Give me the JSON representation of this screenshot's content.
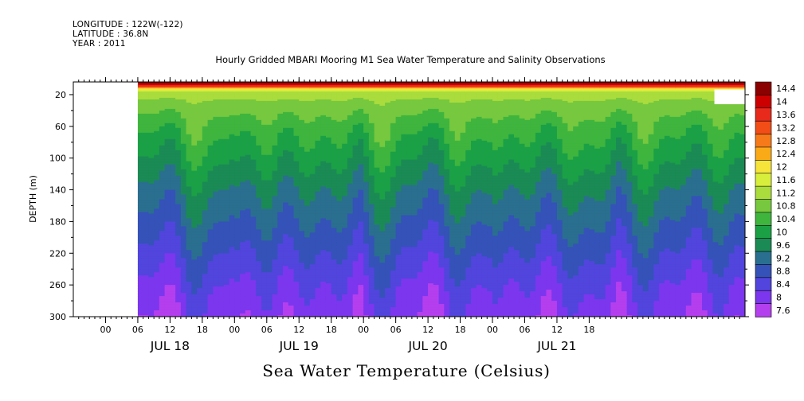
{
  "header": {
    "longitude": "LONGITUDE : 122W(-122)",
    "latitude": "LATITUDE : 36.8N",
    "year": "YEAR : 2011"
  },
  "chart_data": {
    "type": "heatmap",
    "title": "Hourly Gridded MBARI Mooring M1 Sea Water Temperature and Salinity Observations",
    "xlabel": "Sea Water Temperature (Celsius)",
    "ylabel": "DEPTH (m)",
    "x_unit": "hours since JUL 18 00",
    "xlim": [
      -6,
      119
    ],
    "data_start_hour": 6,
    "ylim": [
      300,
      4
    ],
    "y_ticks": [
      20,
      60,
      100,
      140,
      180,
      220,
      260,
      300
    ],
    "x_ticks": [
      "00",
      "06",
      "12",
      "18",
      "00",
      "06",
      "12",
      "18",
      "00",
      "06",
      "12",
      "18",
      "00",
      "06",
      "12",
      "18"
    ],
    "x_tick_hours": [
      0,
      6,
      12,
      18,
      24,
      30,
      36,
      42,
      48,
      54,
      60,
      66,
      72,
      78,
      84,
      90
    ],
    "day_labels": [
      "JUL 18",
      "JUL 19",
      "JUL 20",
      "JUL 21"
    ],
    "day_label_hours": [
      12,
      36,
      60,
      84
    ],
    "colorbar": {
      "levels": [
        "14.4",
        "14",
        "13.6",
        "13.2",
        "12.8",
        "12.4",
        "12",
        "11.6",
        "11.2",
        "10.8",
        "10.4",
        "10",
        "9.6",
        "9.2",
        "8.8",
        "8.4",
        "8",
        "7.6"
      ],
      "colors": [
        "#8b0000",
        "#cc0000",
        "#e82a1c",
        "#f24d17",
        "#f77a1a",
        "#fbaa17",
        "#f6e43a",
        "#d8ee3c",
        "#a9dc3c",
        "#77c83e",
        "#3fb53e",
        "#1ba046",
        "#1b8a55",
        "#2a6f8f",
        "#3452b8",
        "#5145dd",
        "#7c36ee",
        "#b43fee"
      ]
    },
    "depth_profile": [
      {
        "depth": 4,
        "temp": 14.4
      },
      {
        "depth": 8,
        "temp": 14.0
      },
      {
        "depth": 10,
        "temp": 13.2
      },
      {
        "depth": 12,
        "temp": 12.2
      },
      {
        "depth": 16,
        "temp": 11.3
      },
      {
        "depth": 30,
        "temp": 10.9
      },
      {
        "depth": 60,
        "temp": 10.4
      },
      {
        "depth": 100,
        "temp": 9.9
      },
      {
        "depth": 140,
        "temp": 9.4
      },
      {
        "depth": 180,
        "temp": 9.0
      },
      {
        "depth": 220,
        "temp": 8.6
      },
      {
        "depth": 260,
        "temp": 8.2
      },
      {
        "depth": 300,
        "temp": 7.9
      }
    ]
  }
}
